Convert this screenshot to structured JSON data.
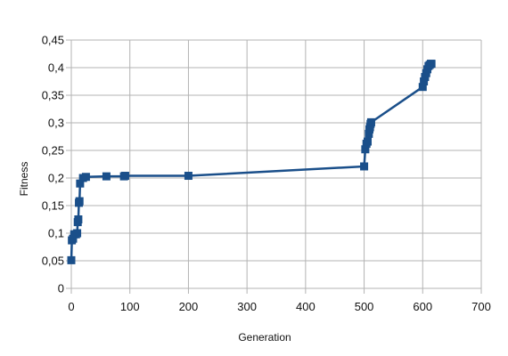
{
  "chart_data": {
    "type": "line",
    "title": "",
    "xlabel": "Generation",
    "ylabel": "Fitness",
    "xlim": [
      0,
      700
    ],
    "ylim": [
      0,
      0.45
    ],
    "x_ticks": [
      0,
      100,
      200,
      300,
      400,
      500,
      600,
      700
    ],
    "x_tick_labels": [
      "0",
      "100",
      "200",
      "300",
      "400",
      "500",
      "600",
      "700"
    ],
    "y_ticks": [
      0,
      0.05,
      0.1,
      0.15,
      0.2,
      0.25,
      0.3,
      0.35,
      0.4,
      0.45
    ],
    "y_tick_labels": [
      "0",
      "0,05",
      "0,1",
      "0,15",
      "0,2",
      "0,25",
      "0,3",
      "0,35",
      "0,4",
      "0,45"
    ],
    "grid": true,
    "legend": "none",
    "series": [
      {
        "color": "#1a4f8a",
        "marker": "square",
        "x": [
          0,
          1,
          3,
          5,
          8,
          10,
          11,
          12,
          13,
          14,
          15,
          20,
          25,
          60,
          90,
          92,
          200,
          500,
          502,
          504,
          506,
          508,
          509,
          510,
          511,
          512,
          600,
          602,
          604,
          606,
          608,
          610,
          612,
          614,
          615
        ],
        "y": [
          0.051,
          0.087,
          0.09,
          0.098,
          0.098,
          0.1,
          0.12,
          0.125,
          0.155,
          0.158,
          0.19,
          0.2,
          0.202,
          0.203,
          0.203,
          0.204,
          0.204,
          0.221,
          0.252,
          0.262,
          0.266,
          0.28,
          0.288,
          0.292,
          0.298,
          0.301,
          0.365,
          0.375,
          0.383,
          0.39,
          0.397,
          0.403,
          0.405,
          0.407,
          0.407
        ]
      }
    ]
  }
}
